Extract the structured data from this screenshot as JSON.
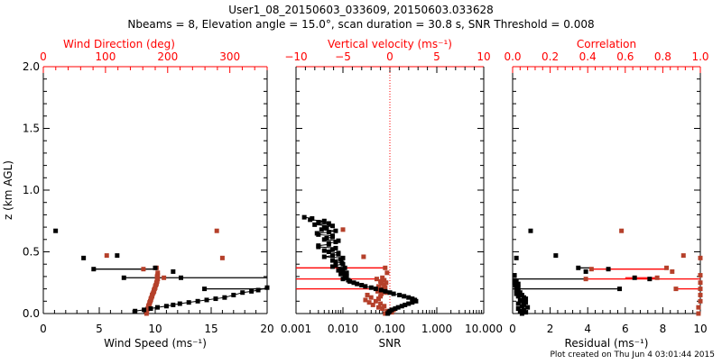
{
  "chart_data": {
    "type": "scatter",
    "title": "User1_08_20150603_033609, 20150603.033628",
    "subtitle": "Nbeams = 8, Elevation angle = 15.0°, scan duration = 30.8 s, SNR Threshold = 0.008",
    "footer": "Plot created on Thu Jun  4 03:01:44 2015",
    "ylabel": "z (km AGL)",
    "ylim": [
      0,
      2.0
    ],
    "yticks": [
      "0.0",
      "0.5",
      "1.0",
      "1.5",
      "2.0"
    ],
    "colors": {
      "primary": "#000000",
      "secondary": "#b5402a",
      "axis2": "#ff0000"
    },
    "panels": [
      {
        "xlabel": "Wind Speed (ms⁻¹)",
        "xscale": "linear",
        "xlim": [
          0,
          20
        ],
        "xticks": [
          "0",
          "5",
          "10",
          "15",
          "20"
        ],
        "top_label": "Wind Direction (deg)",
        "top_lim": [
          0,
          360
        ],
        "top_ticks": [
          "0",
          "100",
          "200",
          "300"
        ],
        "primary_series": {
          "name": "Wind Speed",
          "points": [
            [
              0.02,
              8.2
            ],
            [
              0.03,
              9.0
            ],
            [
              0.04,
              9.6
            ],
            [
              0.05,
              10.2
            ],
            [
              0.06,
              11.0
            ],
            [
              0.07,
              11.6
            ],
            [
              0.08,
              12.2
            ],
            [
              0.09,
              13.0
            ],
            [
              0.1,
              13.8
            ],
            [
              0.11,
              14.6
            ],
            [
              0.12,
              15.4
            ],
            [
              0.13,
              16.2
            ],
            [
              0.15,
              17.0
            ],
            [
              0.17,
              17.8
            ],
            [
              0.18,
              18.6
            ],
            [
              0.19,
              19.2
            ],
            [
              0.21,
              20.0
            ],
            [
              0.2,
              14.4
            ],
            [
              0.29,
              7.2
            ],
            [
              0.29,
              12.3
            ],
            [
              0.34,
              11.6
            ],
            [
              0.36,
              4.5
            ],
            [
              0.37,
              10.0
            ],
            [
              0.45,
              3.6
            ],
            [
              0.47,
              6.6
            ],
            [
              0.67,
              1.1
            ]
          ]
        },
        "primary_lines": [
          [
            0.36,
            4.5,
            10.0
          ],
          [
            0.29,
            7.2,
            20.0
          ],
          [
            0.2,
            14.4,
            20.0
          ]
        ],
        "secondary_series": {
          "name": "Wind Direction",
          "points": [
            [
              0.0,
              166
            ],
            [
              0.02,
              166
            ],
            [
              0.03,
              167
            ],
            [
              0.04,
              168
            ],
            [
              0.05,
              169
            ],
            [
              0.06,
              169
            ],
            [
              0.07,
              170
            ],
            [
              0.08,
              171
            ],
            [
              0.09,
              171
            ],
            [
              0.1,
              172
            ],
            [
              0.11,
              173
            ],
            [
              0.12,
              173
            ],
            [
              0.13,
              174
            ],
            [
              0.14,
              175
            ],
            [
              0.15,
              175
            ],
            [
              0.16,
              176
            ],
            [
              0.17,
              177
            ],
            [
              0.18,
              178
            ],
            [
              0.19,
              178
            ],
            [
              0.2,
              179
            ],
            [
              0.21,
              180
            ],
            [
              0.22,
              180
            ],
            [
              0.23,
              181
            ],
            [
              0.24,
              182
            ],
            [
              0.25,
              182
            ],
            [
              0.26,
              183
            ],
            [
              0.27,
              183
            ],
            [
              0.28,
              184
            ],
            [
              0.29,
              194
            ],
            [
              0.3,
              183
            ],
            [
              0.31,
              184
            ],
            [
              0.33,
              184
            ],
            [
              0.36,
              161
            ],
            [
              0.37,
              182
            ],
            [
              0.45,
              288
            ],
            [
              0.47,
              102
            ],
            [
              0.67,
              279
            ]
          ]
        },
        "secondary_lines": []
      },
      {
        "xlabel": "SNR",
        "xscale": "log",
        "xlim": [
          0.001,
          10
        ],
        "xticks": [
          "0.001",
          "0.010",
          "0.100",
          "1.000",
          "10.000"
        ],
        "top_label": "Vertical velocity (ms⁻¹)",
        "top_lim": [
          -10,
          10
        ],
        "top_ticks": [
          "−10",
          "−5",
          "0",
          "5",
          "10"
        ],
        "threshold_line": 0.1,
        "primary_series": {
          "name": "SNR",
          "points": [
            [
              0.78,
              0.0015
            ],
            [
              0.77,
              0.0022
            ],
            [
              0.76,
              0.002
            ],
            [
              0.75,
              0.004
            ],
            [
              0.74,
              0.003
            ],
            [
              0.73,
              0.005
            ],
            [
              0.72,
              0.0025
            ],
            [
              0.71,
              0.006
            ],
            [
              0.7,
              0.004
            ],
            [
              0.69,
              0.0045
            ],
            [
              0.68,
              0.0035
            ],
            [
              0.67,
              0.007
            ],
            [
              0.66,
              0.005
            ],
            [
              0.65,
              0.0028
            ],
            [
              0.64,
              0.003
            ],
            [
              0.63,
              0.006
            ],
            [
              0.62,
              0.006
            ],
            [
              0.61,
              0.0045
            ],
            [
              0.6,
              0.004
            ],
            [
              0.59,
              0.008
            ],
            [
              0.58,
              0.007
            ],
            [
              0.57,
              0.005
            ],
            [
              0.56,
              0.005
            ],
            [
              0.55,
              0.003
            ],
            [
              0.54,
              0.003
            ],
            [
              0.53,
              0.007
            ],
            [
              0.52,
              0.006
            ],
            [
              0.51,
              0.004
            ],
            [
              0.5,
              0.005
            ],
            [
              0.49,
              0.008
            ],
            [
              0.48,
              0.008
            ],
            [
              0.47,
              0.006
            ],
            [
              0.46,
              0.004
            ],
            [
              0.45,
              0.01
            ],
            [
              0.44,
              0.009
            ],
            [
              0.43,
              0.006
            ],
            [
              0.42,
              0.007
            ],
            [
              0.41,
              0.0095
            ],
            [
              0.4,
              0.01
            ],
            [
              0.39,
              0.007
            ],
            [
              0.38,
              0.006
            ],
            [
              0.37,
              0.011
            ],
            [
              0.36,
              0.009
            ],
            [
              0.35,
              0.008
            ],
            [
              0.34,
              0.01
            ],
            [
              0.33,
              0.012
            ],
            [
              0.32,
              0.009
            ],
            [
              0.31,
              0.011
            ],
            [
              0.3,
              0.012
            ],
            [
              0.29,
              0.011
            ],
            [
              0.28,
              0.01
            ],
            [
              0.27,
              0.013
            ],
            [
              0.26,
              0.014
            ],
            [
              0.25,
              0.017
            ],
            [
              0.24,
              0.02
            ],
            [
              0.23,
              0.025
            ],
            [
              0.22,
              0.03
            ],
            [
              0.21,
              0.04
            ],
            [
              0.2,
              0.05
            ],
            [
              0.19,
              0.065
            ],
            [
              0.18,
              0.08
            ],
            [
              0.17,
              0.1
            ],
            [
              0.16,
              0.12
            ],
            [
              0.15,
              0.16
            ],
            [
              0.14,
              0.2
            ],
            [
              0.13,
              0.25
            ],
            [
              0.12,
              0.3
            ],
            [
              0.11,
              0.34
            ],
            [
              0.1,
              0.36
            ],
            [
              0.09,
              0.3
            ],
            [
              0.08,
              0.25
            ],
            [
              0.07,
              0.21
            ],
            [
              0.06,
              0.18
            ],
            [
              0.05,
              0.15
            ],
            [
              0.04,
              0.13
            ],
            [
              0.03,
              0.11
            ],
            [
              0.02,
              0.1
            ],
            [
              0.01,
              0.095
            ],
            [
              0.0,
              0.09
            ]
          ]
        },
        "primary_lines": [],
        "secondary_series": {
          "name": "Vertical velocity",
          "points": [
            [
              0.0,
              -0.5
            ],
            [
              0.01,
              0.2
            ],
            [
              0.02,
              -0.3
            ],
            [
              0.03,
              0.4
            ],
            [
              0.04,
              -0.8
            ],
            [
              0.05,
              -1.2
            ],
            [
              0.06,
              -0.6
            ],
            [
              0.07,
              -1.8
            ],
            [
              0.08,
              -1.0
            ],
            [
              0.09,
              -2.2
            ],
            [
              0.1,
              -1.5
            ],
            [
              0.11,
              -2.6
            ],
            [
              0.12,
              -1.2
            ],
            [
              0.13,
              -2.0
            ],
            [
              0.14,
              -1.0
            ],
            [
              0.15,
              -2.4
            ],
            [
              0.16,
              -0.9
            ],
            [
              0.17,
              -0.4
            ],
            [
              0.18,
              -1.3
            ],
            [
              0.19,
              -0.7
            ],
            [
              0.2,
              -0.8
            ],
            [
              0.21,
              -0.5
            ],
            [
              0.22,
              -1.2
            ],
            [
              0.23,
              -0.6
            ],
            [
              0.24,
              -0.9
            ],
            [
              0.25,
              -0.4
            ],
            [
              0.26,
              -1.0
            ],
            [
              0.27,
              -0.6
            ],
            [
              0.28,
              -1.4
            ],
            [
              0.29,
              -0.8
            ],
            [
              0.33,
              -0.3
            ],
            [
              0.37,
              -0.5
            ],
            [
              0.46,
              -2.8
            ],
            [
              0.68,
              -5.0
            ]
          ]
        },
        "secondary_lines": [
          [
            0.37,
            -10,
            -0.5
          ],
          [
            0.28,
            -10,
            -1.4
          ],
          [
            0.2,
            -10,
            -0.8
          ]
        ]
      },
      {
        "xlabel": "Residual (ms⁻¹)",
        "xscale": "linear",
        "xlim": [
          0,
          10
        ],
        "xticks": [
          "0",
          "2",
          "4",
          "6",
          "8",
          "10"
        ],
        "top_label": "Correlation",
        "top_lim": [
          0,
          1
        ],
        "top_ticks": [
          "0.0",
          "0.2",
          "0.4",
          "0.6",
          "0.8",
          "1.0"
        ],
        "primary_series": {
          "name": "Residual",
          "points": [
            [
              0.0,
              0.5
            ],
            [
              0.01,
              0.7
            ],
            [
              0.02,
              0.4
            ],
            [
              0.03,
              0.6
            ],
            [
              0.04,
              0.3
            ],
            [
              0.05,
              0.8
            ],
            [
              0.06,
              0.5
            ],
            [
              0.07,
              0.6
            ],
            [
              0.08,
              0.3
            ],
            [
              0.09,
              0.7
            ],
            [
              0.1,
              0.5
            ],
            [
              0.11,
              0.4
            ],
            [
              0.12,
              0.7
            ],
            [
              0.13,
              0.6
            ],
            [
              0.14,
              0.3
            ],
            [
              0.15,
              0.5
            ],
            [
              0.16,
              0.2
            ],
            [
              0.17,
              0.4
            ],
            [
              0.18,
              0.3
            ],
            [
              0.19,
              0.2
            ],
            [
              0.21,
              0.3
            ],
            [
              0.22,
              0.2
            ],
            [
              0.23,
              0.15
            ],
            [
              0.24,
              0.3
            ],
            [
              0.25,
              0.1
            ],
            [
              0.26,
              0.2
            ],
            [
              0.27,
              0.1
            ],
            [
              0.31,
              0.1
            ],
            [
              0.2,
              5.7
            ],
            [
              0.28,
              7.3
            ],
            [
              0.29,
              6.5
            ],
            [
              0.34,
              3.9
            ],
            [
              0.36,
              5.1
            ],
            [
              0.37,
              3.5
            ],
            [
              0.45,
              0.2
            ],
            [
              0.47,
              2.3
            ],
            [
              0.67,
              0.96
            ]
          ]
        },
        "primary_lines": [
          [
            0.28,
            0,
            3.9
          ],
          [
            0.2,
            0,
            5.7
          ],
          [
            0.37,
            3.5,
            4.2
          ]
        ],
        "secondary_series": {
          "name": "Correlation",
          "points": [
            [
              0.0,
              0.99
            ],
            [
              0.05,
              0.99
            ],
            [
              0.1,
              1.0
            ],
            [
              0.15,
              1.0
            ],
            [
              0.2,
              1.0
            ],
            [
              0.25,
              1.0
            ],
            [
              0.2,
              0.87
            ],
            [
              0.28,
              0.39
            ],
            [
              0.29,
              0.77
            ],
            [
              0.31,
              1.0
            ],
            [
              0.34,
              0.85
            ],
            [
              0.36,
              0.42
            ],
            [
              0.37,
              0.82
            ],
            [
              0.45,
              1.0
            ],
            [
              0.47,
              0.91
            ],
            [
              0.67,
              0.58
            ]
          ]
        },
        "secondary_lines": [
          [
            0.36,
            0.42,
            0.82
          ],
          [
            0.28,
            0.39,
            1.0
          ],
          [
            0.29,
            0.6,
            0.77
          ],
          [
            0.2,
            0.87,
            1.0
          ]
        ]
      }
    ]
  }
}
